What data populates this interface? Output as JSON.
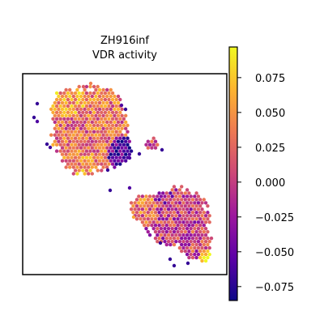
{
  "chart_data": {
    "type": "heatmap",
    "title_lines": [
      "ZH916inf",
      "VDR activity"
    ],
    "xlabel": "",
    "ylabel": "",
    "colormap": "plasma",
    "colorbar": {
      "range": [
        -0.085,
        0.097
      ],
      "ticks": [
        0.075,
        0.05,
        0.025,
        0.0,
        -0.025,
        -0.05,
        -0.075
      ],
      "tick_labels": [
        "0.075",
        "0.050",
        "0.025",
        "0.000",
        "−0.025",
        "−0.050",
        "−0.075"
      ]
    },
    "regions": [
      {
        "name": "upper-left tissue cluster",
        "mean_value": 0.02
      },
      {
        "name": "lower-right tissue cluster",
        "mean_value": 0.0
      }
    ]
  },
  "colors": {
    "plasma_stops": [
      "#0d0887",
      "#5c01a6",
      "#9c179e",
      "#cc4778",
      "#ed7953",
      "#fdb42f",
      "#f0f921"
    ]
  }
}
